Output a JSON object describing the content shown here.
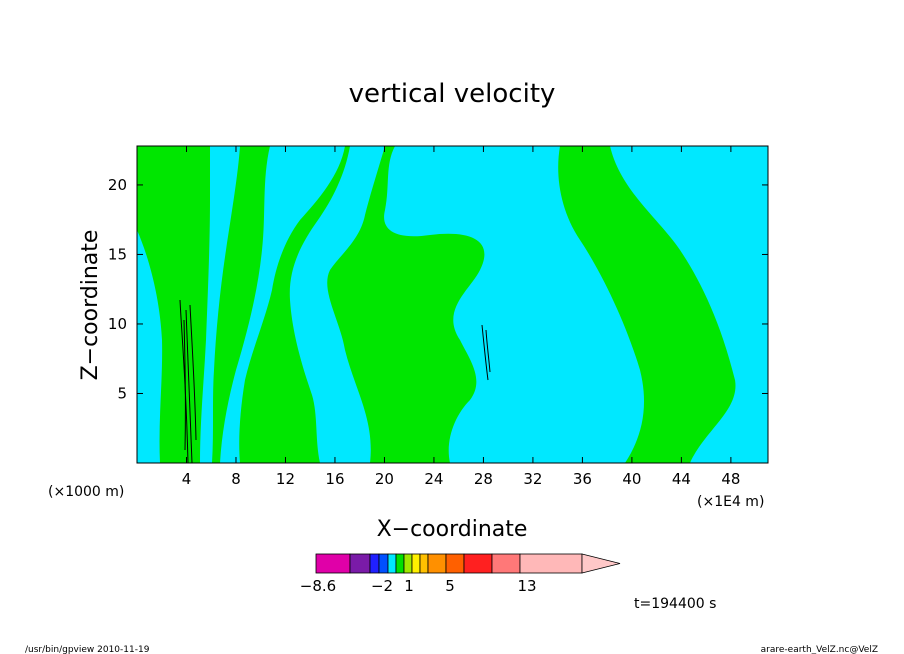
{
  "chart_data": {
    "type": "heatmap",
    "title": "vertical velocity",
    "xlabel": "X−coordinate",
    "ylabel": "Z−coordinate",
    "x_unit_note": "(×1E4 m)",
    "y_unit_note": "(×1000 m)",
    "xlim": [
      0,
      51
    ],
    "ylim": [
      0,
      22.8
    ],
    "x_ticks": [
      4,
      8,
      12,
      16,
      20,
      24,
      28,
      32,
      36,
      40,
      44,
      48
    ],
    "y_ticks": [
      5,
      10,
      15,
      20
    ],
    "colorbar": {
      "colors": [
        "#e000a8",
        "#7a1ba8",
        "#2020ff",
        "#0050ff",
        "#00e8ff",
        "#00e000",
        "#a0e800",
        "#fff000",
        "#ffc000",
        "#ff9000",
        "#ff6000",
        "#ff2020",
        "#ff7878",
        "#ffb8b8",
        "#ffc8c8"
      ],
      "labels": [
        "−8.6",
        "−2",
        "1",
        "5",
        "13"
      ]
    },
    "fields": [
      {
        "name": "green regions",
        "color": "#00e600"
      },
      {
        "name": "cyan regions",
        "color": "#00e8ff"
      }
    ]
  },
  "time_label": "t=194400 s",
  "footer_left": "/usr/bin/gpview   2010-11-19",
  "footer_right": "arare-earth_VelZ.nc@VelZ"
}
